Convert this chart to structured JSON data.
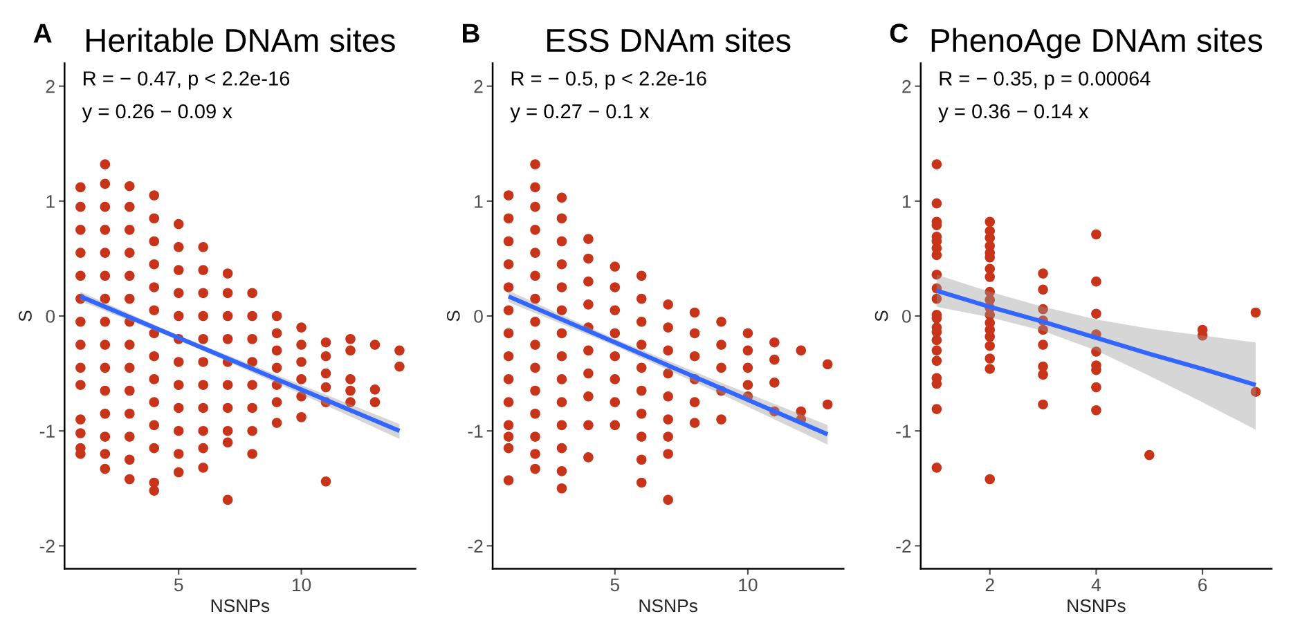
{
  "chart_data": [
    {
      "type": "scatter",
      "title": "Heritable DNAm sites",
      "xlabel": "NSNPs",
      "ylabel": "S",
      "xlim": [
        0.35,
        14.65
      ],
      "xticks": [
        5,
        10
      ],
      "ylim": [
        -2.2,
        2.2
      ],
      "yticks": [
        -2,
        -1,
        0,
        1,
        2
      ],
      "grid": false,
      "annotations": [
        "A",
        "R = − 0.47, p < 2.2e-16",
        "y = 0.26 − 0.09 x"
      ],
      "series": [
        {
          "type": "scatter",
          "marker": "circle",
          "color": "#c8341a",
          "x": [
            1,
            1,
            1,
            1,
            1,
            1,
            1,
            1,
            1,
            1,
            1,
            1,
            1,
            1,
            2,
            2,
            2,
            2,
            2,
            2,
            2,
            2,
            2,
            2,
            2,
            2,
            2,
            2,
            2,
            3,
            3,
            3,
            3,
            3,
            3,
            3,
            3,
            3,
            3,
            3,
            3,
            3,
            3,
            4,
            4,
            4,
            4,
            4,
            4,
            4,
            4,
            4,
            4,
            4,
            4,
            4,
            4,
            5,
            5,
            5,
            5,
            5,
            5,
            5,
            5,
            5,
            5,
            5,
            5,
            6,
            6,
            6,
            6,
            6,
            6,
            6,
            6,
            6,
            6,
            6,
            7,
            7,
            7,
            7,
            7,
            7,
            7,
            7,
            7,
            7,
            8,
            8,
            8,
            8,
            8,
            8,
            8,
            8,
            9,
            9,
            9,
            9,
            9,
            9,
            9,
            10,
            10,
            10,
            10,
            10,
            10,
            11,
            11,
            11,
            11,
            11,
            11,
            12,
            12,
            12,
            12,
            12,
            13,
            13,
            13,
            14,
            14
          ],
          "values": [
            1.12,
            0.95,
            0.75,
            0.55,
            0.35,
            0.15,
            -0.05,
            -0.25,
            -0.45,
            -0.6,
            -0.9,
            -1.02,
            -1.15,
            -1.2,
            1.32,
            1.15,
            0.95,
            0.75,
            0.55,
            0.35,
            0.15,
            -0.05,
            -0.25,
            -0.45,
            -0.65,
            -0.85,
            -1.05,
            -1.2,
            -1.33,
            1.13,
            0.95,
            0.75,
            0.55,
            0.35,
            0.15,
            -0.05,
            -0.25,
            -0.45,
            -0.65,
            -0.85,
            -1.05,
            -1.25,
            -1.42,
            1.05,
            0.85,
            0.65,
            0.45,
            0.25,
            0.05,
            -0.15,
            -0.35,
            -0.55,
            -0.75,
            -0.95,
            -1.15,
            -1.45,
            -1.52,
            0.8,
            0.6,
            0.4,
            0.2,
            0,
            -0.2,
            -0.4,
            -0.6,
            -0.8,
            -1.0,
            -1.2,
            -1.36,
            0.6,
            0.4,
            0.2,
            0,
            -0.2,
            -0.4,
            -0.6,
            -0.8,
            -1.0,
            -1.15,
            -1.32,
            0.37,
            0.2,
            0,
            -0.2,
            -0.4,
            -0.6,
            -0.8,
            -1.0,
            -1.1,
            -1.6,
            0.2,
            0,
            -0.2,
            -0.4,
            -0.6,
            -0.8,
            -1.0,
            -1.2,
            0,
            -0.15,
            -0.3,
            -0.45,
            -0.6,
            -0.75,
            -0.93,
            -0.1,
            -0.25,
            -0.4,
            -0.55,
            -0.7,
            -0.88,
            -0.23,
            -0.35,
            -0.5,
            -0.62,
            -0.75,
            -1.44,
            -0.2,
            -0.3,
            -0.55,
            -0.65,
            -0.75,
            -0.25,
            -0.64,
            -0.75,
            -0.3,
            -0.44
          ]
        },
        {
          "type": "line",
          "color": "#3366ff",
          "x": [
            1,
            5,
            10,
            14
          ],
          "values": [
            0.17,
            -0.19,
            -0.64,
            -1.0
          ],
          "lower": [
            0.13,
            -0.21,
            -0.68,
            -1.07
          ],
          "upper": [
            0.21,
            -0.17,
            -0.6,
            -0.94
          ]
        }
      ]
    },
    {
      "type": "scatter",
      "title": "ESS DNAm sites",
      "xlabel": "NSNPs",
      "ylabel": "S",
      "xlim": [
        0.4,
        13.6
      ],
      "xticks": [
        5,
        10
      ],
      "ylim": [
        -2.2,
        2.2
      ],
      "yticks": [
        -2,
        -1,
        0,
        1,
        2
      ],
      "grid": false,
      "annotations": [
        "B",
        "R = − 0.5, p < 2.2e-16",
        "y = 0.27 − 0.1 x"
      ],
      "series": [
        {
          "type": "scatter",
          "marker": "circle",
          "color": "#c8341a",
          "x": [
            1,
            1,
            1,
            1,
            1,
            1,
            1,
            1,
            1,
            1,
            1,
            1,
            1,
            1,
            2,
            2,
            2,
            2,
            2,
            2,
            2,
            2,
            2,
            2,
            2,
            2,
            2,
            2,
            2,
            3,
            3,
            3,
            3,
            3,
            3,
            3,
            3,
            3,
            3,
            3,
            3,
            3,
            3,
            4,
            4,
            4,
            4,
            4,
            4,
            4,
            4,
            4,
            4,
            5,
            5,
            5,
            5,
            5,
            5,
            5,
            5,
            6,
            6,
            6,
            6,
            6,
            6,
            6,
            6,
            6,
            6,
            7,
            7,
            7,
            7,
            7,
            7,
            7,
            7,
            7,
            8,
            8,
            8,
            8,
            8,
            8,
            9,
            9,
            9,
            9,
            9,
            10,
            10,
            10,
            10,
            10,
            11,
            11,
            11,
            11,
            12,
            12,
            12,
            13,
            13
          ],
          "values": [
            1.05,
            0.85,
            0.65,
            0.45,
            0.25,
            0.05,
            -0.15,
            -0.35,
            -0.55,
            -0.75,
            -0.95,
            -1.05,
            -1.15,
            -1.43,
            1.32,
            1.12,
            0.95,
            0.75,
            0.55,
            0.35,
            0.15,
            -0.05,
            -0.25,
            -0.45,
            -0.65,
            -0.85,
            -1.05,
            -1.2,
            -1.33,
            1.03,
            0.85,
            0.65,
            0.45,
            0.25,
            0.05,
            -0.15,
            -0.35,
            -0.55,
            -0.75,
            -0.95,
            -1.15,
            -1.35,
            -1.5,
            0.67,
            0.5,
            0.3,
            0.1,
            -0.1,
            -0.3,
            -0.5,
            -0.7,
            -0.95,
            -1.23,
            0.43,
            0.25,
            0.05,
            -0.15,
            -0.35,
            -0.55,
            -0.75,
            -0.95,
            0.35,
            0.15,
            -0.05,
            -0.25,
            -0.45,
            -0.65,
            -0.85,
            -1.05,
            -1.25,
            -1.45,
            0.1,
            -0.1,
            -0.3,
            -0.5,
            -0.7,
            -0.9,
            -1.05,
            -1.2,
            -1.6,
            0.03,
            -0.15,
            -0.35,
            -0.55,
            -0.75,
            -0.93,
            -0.05,
            -0.25,
            -0.45,
            -0.65,
            -0.9,
            -0.15,
            -0.3,
            -0.45,
            -0.6,
            -0.7,
            -0.23,
            -0.38,
            -0.58,
            -0.83,
            -0.3,
            -0.83,
            -0.9,
            -0.42,
            -0.77
          ]
        },
        {
          "type": "line",
          "color": "#3366ff",
          "x": [
            1,
            5,
            9,
            13
          ],
          "values": [
            0.17,
            -0.23,
            -0.63,
            -1.03
          ],
          "lower": [
            0.12,
            -0.26,
            -0.68,
            -1.12
          ],
          "upper": [
            0.22,
            -0.2,
            -0.58,
            -0.95
          ]
        }
      ]
    },
    {
      "type": "scatter",
      "title": "PhenoAge DNAm sites",
      "xlabel": "NSNPs",
      "ylabel": "S",
      "xlim": [
        0.7,
        7.3
      ],
      "xticks": [
        2,
        4,
        6
      ],
      "ylim": [
        -2.2,
        2.2
      ],
      "yticks": [
        -2,
        -1,
        0,
        1,
        2
      ],
      "grid": false,
      "annotations": [
        "C",
        "R = − 0.35, p = 0.00064",
        "y = 0.36 − 0.14 x"
      ],
      "series": [
        {
          "type": "scatter",
          "marker": "circle",
          "color": "#c8341a",
          "x": [
            1,
            1,
            1,
            1,
            1,
            1,
            1,
            1,
            1,
            1,
            1,
            1,
            1,
            1,
            1,
            1,
            1,
            1,
            1,
            1,
            1,
            1,
            2,
            2,
            2,
            2,
            2,
            2,
            2,
            2,
            2,
            2,
            2,
            2,
            2,
            2,
            2,
            2,
            2,
            2,
            2,
            3,
            3,
            3,
            3,
            3,
            3,
            3,
            3,
            3,
            4,
            4,
            4,
            4,
            4,
            4,
            4,
            4,
            4,
            5,
            6,
            6,
            7,
            7
          ],
          "values": [
            1.32,
            0.98,
            0.82,
            0.79,
            0.69,
            0.65,
            0.59,
            0.53,
            0.36,
            0.24,
            0.15,
            0.01,
            -0.02,
            -0.1,
            -0.14,
            -0.21,
            -0.3,
            -0.39,
            -0.54,
            -0.59,
            -0.81,
            -1.32,
            0.82,
            0.74,
            0.68,
            0.61,
            0.55,
            0.51,
            0.41,
            0.34,
            0.21,
            0.14,
            0.07,
            0.01,
            -0.06,
            -0.12,
            -0.18,
            -0.26,
            -0.37,
            -0.46,
            -1.42,
            0.37,
            0.23,
            0.06,
            -0.04,
            -0.12,
            -0.25,
            -0.44,
            -0.51,
            -0.77,
            0.71,
            0.3,
            0.02,
            -0.16,
            -0.31,
            -0.43,
            -0.47,
            -0.62,
            -0.82,
            -1.21,
            -0.12,
            -0.17,
            0.03,
            -0.66
          ]
        },
        {
          "type": "line",
          "color": "#3366ff",
          "x": [
            1,
            2,
            3,
            4,
            5,
            6,
            7
          ],
          "values": [
            0.22,
            0.08,
            -0.05,
            -0.19,
            -0.33,
            -0.46,
            -0.6
          ],
          "lower": [
            0.08,
            -0.01,
            -0.13,
            -0.3,
            -0.52,
            -0.75,
            -0.99
          ],
          "upper": [
            0.36,
            0.21,
            0.08,
            -0.03,
            -0.11,
            -0.17,
            -0.23
          ]
        }
      ]
    }
  ]
}
